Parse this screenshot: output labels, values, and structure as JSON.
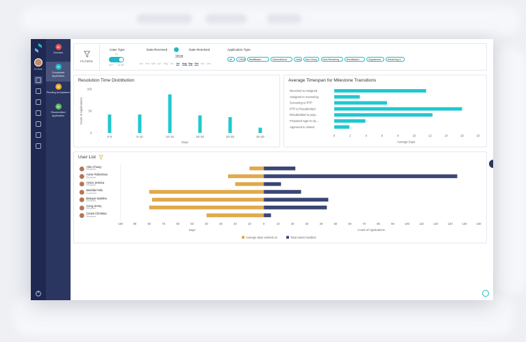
{
  "rail": {
    "user_label": "Di Zhan",
    "icons": [
      "home-icon",
      "clipboard-icon",
      "buildings-icon",
      "document-icon",
      "briefcase-icon",
      "mail-icon",
      "report-icon"
    ],
    "bottom_icon": "power-icon"
  },
  "nav": [
    {
      "badge": "22",
      "label": "Overdue",
      "color": "#e05353"
    },
    {
      "badge": "76",
      "label": "Completed Application",
      "color": "#1fb8c8",
      "active": true
    },
    {
      "badge": "18",
      "label": "Pending Acceptance",
      "color": "#e8a93a"
    },
    {
      "badge": "03",
      "label": "Resubmitted Application",
      "color": "#5cb85c"
    }
  ],
  "filters": {
    "label": "FILTERS",
    "case_type": {
      "title": "Case Type",
      "all": "All",
      "left": "EDF",
      "right": "AL/MP"
    },
    "data_received": "Data Received",
    "date_resolved": "Date Resolved",
    "year": "2018",
    "months": [
      "Jan",
      "Feb",
      "Mar",
      "Apr",
      "May",
      "Jun",
      "Jul",
      "Aug",
      "Sep",
      "Oct",
      "Nov",
      "Dec"
    ],
    "selected_months": [
      "Jul",
      "Aug",
      "Sep",
      "Oct"
    ],
    "application_type": {
      "title": "Application Type",
      "chips": [
        "All",
        "CHDA",
        "Reaffiliation",
        "Disenrollment",
        "New",
        "New Group",
        "New Rendering",
        "Resolidation",
        "Supplement",
        "Rendering G"
      ]
    }
  },
  "resolution": {
    "title": "Resolution Time Distribution",
    "chart_data": {
      "type": "bar",
      "title": "Resolution Time Distribution",
      "categories": [
        "0–5",
        "5–10",
        "10–15",
        "15–20",
        "20–25",
        "25–30"
      ],
      "values": [
        42,
        42,
        88,
        40,
        36,
        12
      ],
      "ylabel": "Count of Applications",
      "xlabel": "Days",
      "ylim": [
        0,
        100
      ],
      "yticks": [
        0,
        50,
        100
      ]
    }
  },
  "milestone": {
    "title": "Average Timespan for Milestone Transitions",
    "chart_data": {
      "type": "bar",
      "orientation": "horizontal",
      "categories": [
        "Received to Assigned",
        "Assigned to Screening",
        "Screening to RTP",
        "RTP to Resubmitted",
        "Resubmitted to prop...",
        "Proposed Appr to Ap...",
        "Approved to closed"
      ],
      "values": [
        11.5,
        3.2,
        6.6,
        16,
        12.3,
        3.9,
        1.9
      ],
      "xlabel": "Average Days",
      "xlim": [
        0,
        18
      ],
      "xticks": [
        0,
        2,
        4,
        6,
        8,
        10,
        12,
        14,
        16,
        18
      ]
    }
  },
  "users": {
    "title": "User List",
    "rows": [
      {
        "name": "Alex Chung",
        "role": "Reviewer"
      },
      {
        "name": "Annie Robertson",
        "role": "Reviewer"
      },
      {
        "name": "Arson Jessica",
        "role": "Reviewer"
      },
      {
        "name": "Bedolla Felix",
        "role": "Customer"
      },
      {
        "name": "Bosque Iwaloha",
        "role": "Reviewer"
      },
      {
        "name": "Cong Jenny",
        "role": "Reviewer"
      },
      {
        "name": "Crews Christina",
        "role": "Reviewer"
      }
    ],
    "chart_data": {
      "type": "bar",
      "orientation": "horizontal-diverging",
      "categories": [
        "Alex Chung",
        "Annie Robertson",
        "Arson Jessica",
        "Bedolla Felix",
        "Bosque Iwaloha",
        "Cong Jenny",
        "Crews Christina"
      ],
      "series": [
        {
          "name": "Average days worked on",
          "color": "#e0a94a",
          "values": [
            10,
            25,
            20,
            80,
            78,
            80,
            40
          ]
        },
        {
          "name": "Total cases handled",
          "color": "#3b4674",
          "values": [
            22,
            135,
            12,
            26,
            45,
            44,
            5
          ]
        }
      ],
      "left_xlabel": "Days",
      "right_xlabel": "Count of Applications",
      "left_ticks": [
        100,
        90,
        80,
        70,
        60,
        50,
        40,
        30,
        20,
        10,
        0
      ],
      "right_ticks": [
        10,
        20,
        30,
        40,
        50,
        60,
        70,
        80,
        90,
        100,
        110,
        120,
        130,
        140,
        150
      ],
      "xlim": [
        -100,
        150
      ]
    }
  }
}
